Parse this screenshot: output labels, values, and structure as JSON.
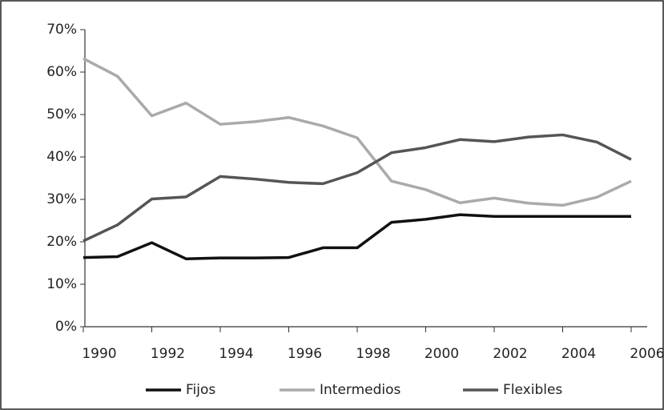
{
  "chart_data": {
    "type": "line",
    "x": [
      1990,
      1991,
      1992,
      1993,
      1994,
      1995,
      1996,
      1997,
      1998,
      1999,
      2000,
      2001,
      2002,
      2003,
      2004,
      2005,
      2006
    ],
    "xlim": [
      1990,
      2006
    ],
    "xticks": [
      1990,
      1992,
      1994,
      1996,
      1998,
      2000,
      2002,
      2004,
      2006
    ],
    "ylim": [
      0,
      70
    ],
    "yticks": [
      {
        "value": 0,
        "label": "0%"
      },
      {
        "value": 10,
        "label": "10%"
      },
      {
        "value": 20,
        "label": "20%"
      },
      {
        "value": 30,
        "label": "30%"
      },
      {
        "value": 40,
        "label": "40%"
      },
      {
        "value": 50,
        "label": "50%"
      },
      {
        "value": 60,
        "label": "60%"
      },
      {
        "value": 70,
        "label": "70%"
      }
    ],
    "legend": "bottom",
    "series": [
      {
        "name": "Fijos",
        "color": "#111111",
        "values": [
          16.3,
          16.5,
          19.8,
          16,
          16.2,
          16.2,
          16.3,
          18.6,
          18.6,
          24.6,
          25.3,
          26.4,
          26,
          26,
          26,
          26,
          26
        ]
      },
      {
        "name": "Intermedios",
        "color": "#aaaaaa",
        "values": [
          63.2,
          59,
          49.7,
          52.7,
          47.7,
          48.3,
          49.3,
          47.3,
          44.5,
          34.3,
          32.3,
          29.2,
          30.3,
          29.1,
          28.6,
          30.5,
          34.3
        ]
      },
      {
        "name": "Flexibles",
        "color": "#555555",
        "values": [
          20.2,
          24,
          30.1,
          30.6,
          35.4,
          34.8,
          34,
          33.7,
          36.3,
          41,
          42.2,
          44.1,
          43.6,
          44.7,
          45.2,
          43.5,
          39.4
        ]
      }
    ]
  }
}
